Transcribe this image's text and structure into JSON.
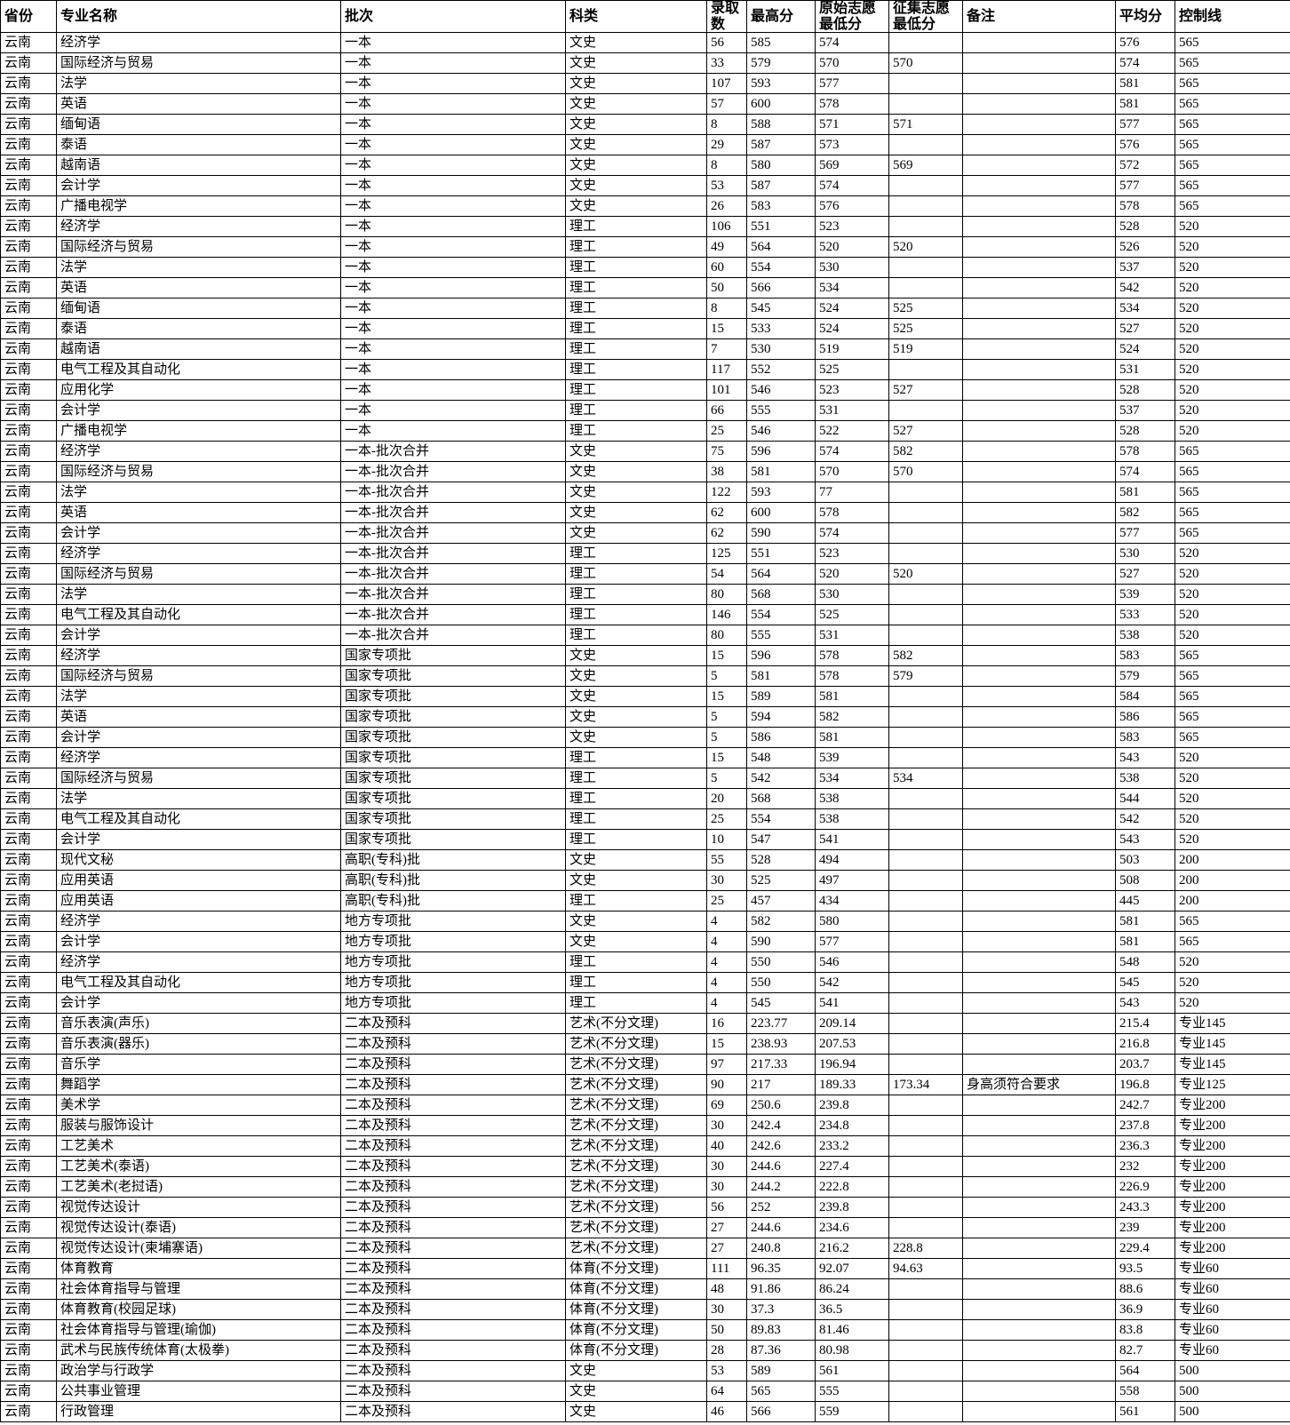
{
  "colors": {
    "border": "#000000",
    "background": "#ffffff",
    "text": "#000000"
  },
  "table": {
    "columns": [
      "省份",
      "专业名称",
      "批次",
      "科类",
      "录取数",
      "最高分",
      "原始志愿最低分",
      "征集志愿最低分",
      "备注",
      "平均分",
      "控制线"
    ],
    "rows": [
      [
        "云南",
        "经济学",
        "一本",
        "文史",
        "56",
        "585",
        "574",
        "",
        "",
        "576",
        "565"
      ],
      [
        "云南",
        "国际经济与贸易",
        "一本",
        "文史",
        "33",
        "579",
        "570",
        "570",
        "",
        "574",
        "565"
      ],
      [
        "云南",
        "法学",
        "一本",
        "文史",
        "107",
        "593",
        "577",
        "",
        "",
        "581",
        "565"
      ],
      [
        "云南",
        "英语",
        "一本",
        "文史",
        "57",
        "600",
        "578",
        "",
        "",
        "581",
        "565"
      ],
      [
        "云南",
        "缅甸语",
        "一本",
        "文史",
        "8",
        "588",
        "571",
        "571",
        "",
        "577",
        "565"
      ],
      [
        "云南",
        "泰语",
        "一本",
        "文史",
        "29",
        "587",
        "573",
        "",
        "",
        "576",
        "565"
      ],
      [
        "云南",
        "越南语",
        "一本",
        "文史",
        "8",
        "580",
        "569",
        "569",
        "",
        "572",
        "565"
      ],
      [
        "云南",
        "会计学",
        "一本",
        "文史",
        "53",
        "587",
        "574",
        "",
        "",
        "577",
        "565"
      ],
      [
        "云南",
        "广播电视学",
        "一本",
        "文史",
        "26",
        "583",
        "576",
        "",
        "",
        "578",
        "565"
      ],
      [
        "云南",
        "经济学",
        "一本",
        "理工",
        "106",
        "551",
        "523",
        "",
        "",
        "528",
        "520"
      ],
      [
        "云南",
        "国际经济与贸易",
        "一本",
        "理工",
        "49",
        "564",
        "520",
        "520",
        "",
        "526",
        "520"
      ],
      [
        "云南",
        "法学",
        "一本",
        "理工",
        "60",
        "554",
        "530",
        "",
        "",
        "537",
        "520"
      ],
      [
        "云南",
        "英语",
        "一本",
        "理工",
        "50",
        "566",
        "534",
        "",
        "",
        "542",
        "520"
      ],
      [
        "云南",
        "缅甸语",
        "一本",
        "理工",
        "8",
        "545",
        "524",
        "525",
        "",
        "534",
        "520"
      ],
      [
        "云南",
        "泰语",
        "一本",
        "理工",
        "15",
        "533",
        "524",
        "525",
        "",
        "527",
        "520"
      ],
      [
        "云南",
        "越南语",
        "一本",
        "理工",
        "7",
        "530",
        "519",
        "519",
        "",
        "524",
        "520"
      ],
      [
        "云南",
        "电气工程及其自动化",
        "一本",
        "理工",
        "117",
        "552",
        "525",
        "",
        "",
        "531",
        "520"
      ],
      [
        "云南",
        "应用化学",
        "一本",
        "理工",
        "101",
        "546",
        "523",
        "527",
        "",
        "528",
        "520"
      ],
      [
        "云南",
        "会计学",
        "一本",
        "理工",
        "66",
        "555",
        "531",
        "",
        "",
        "537",
        "520"
      ],
      [
        "云南",
        "广播电视学",
        "一本",
        "理工",
        "25",
        "546",
        "522",
        "527",
        "",
        "528",
        "520"
      ],
      [
        "云南",
        "经济学",
        "一本-批次合并",
        "文史",
        "75",
        "596",
        "574",
        "582",
        "",
        "578",
        "565"
      ],
      [
        "云南",
        "国际经济与贸易",
        "一本-批次合并",
        "文史",
        "38",
        "581",
        "570",
        "570",
        "",
        "574",
        "565"
      ],
      [
        "云南",
        "法学",
        "一本-批次合并",
        "文史",
        "122",
        "593",
        "77",
        "",
        "",
        "581",
        "565"
      ],
      [
        "云南",
        "英语",
        "一本-批次合并",
        "文史",
        "62",
        "600",
        "578",
        "",
        "",
        "582",
        "565"
      ],
      [
        "云南",
        "会计学",
        "一本-批次合并",
        "文史",
        "62",
        "590",
        "574",
        "",
        "",
        "577",
        "565"
      ],
      [
        "云南",
        "经济学",
        "一本-批次合并",
        "理工",
        "125",
        "551",
        "523",
        "",
        "",
        "530",
        "520"
      ],
      [
        "云南",
        "国际经济与贸易",
        "一本-批次合并",
        "理工",
        "54",
        "564",
        "520",
        "520",
        "",
        "527",
        "520"
      ],
      [
        "云南",
        "法学",
        "一本-批次合并",
        "理工",
        "80",
        "568",
        "530",
        "",
        "",
        "539",
        "520"
      ],
      [
        "云南",
        "电气工程及其自动化",
        "一本-批次合并",
        "理工",
        "146",
        "554",
        "525",
        "",
        "",
        "533",
        "520"
      ],
      [
        "云南",
        "会计学",
        "一本-批次合并",
        "理工",
        "80",
        "555",
        "531",
        "",
        "",
        "538",
        "520"
      ],
      [
        "云南",
        "经济学",
        "国家专项批",
        "文史",
        "15",
        "596",
        "578",
        "582",
        "",
        "583",
        "565"
      ],
      [
        "云南",
        "国际经济与贸易",
        "国家专项批",
        "文史",
        "5",
        "581",
        "578",
        "579",
        "",
        "579",
        "565"
      ],
      [
        "云南",
        "法学",
        "国家专项批",
        "文史",
        "15",
        "589",
        "581",
        "",
        "",
        "584",
        "565"
      ],
      [
        "云南",
        "英语",
        "国家专项批",
        "文史",
        "5",
        "594",
        "582",
        "",
        "",
        "586",
        "565"
      ],
      [
        "云南",
        "会计学",
        "国家专项批",
        "文史",
        "5",
        "586",
        "581",
        "",
        "",
        "583",
        "565"
      ],
      [
        "云南",
        "经济学",
        "国家专项批",
        "理工",
        "15",
        "548",
        "539",
        "",
        "",
        "543",
        "520"
      ],
      [
        "云南",
        "国际经济与贸易",
        "国家专项批",
        "理工",
        "5",
        "542",
        "534",
        "534",
        "",
        "538",
        "520"
      ],
      [
        "云南",
        "法学",
        "国家专项批",
        "理工",
        "20",
        "568",
        "538",
        "",
        "",
        "544",
        "520"
      ],
      [
        "云南",
        "电气工程及其自动化",
        "国家专项批",
        "理工",
        "25",
        "554",
        "538",
        "",
        "",
        "542",
        "520"
      ],
      [
        "云南",
        "会计学",
        "国家专项批",
        "理工",
        "10",
        "547",
        "541",
        "",
        "",
        "543",
        "520"
      ],
      [
        "云南",
        "现代文秘",
        "高职(专科)批",
        "文史",
        "55",
        "528",
        "494",
        "",
        "",
        "503",
        "200"
      ],
      [
        "云南",
        "应用英语",
        "高职(专科)批",
        "文史",
        "30",
        "525",
        "497",
        "",
        "",
        "508",
        "200"
      ],
      [
        "云南",
        "应用英语",
        "高职(专科)批",
        "理工",
        "25",
        "457",
        "434",
        "",
        "",
        "445",
        "200"
      ],
      [
        "云南",
        "经济学",
        "地方专项批",
        "文史",
        "4",
        "582",
        "580",
        "",
        "",
        "581",
        "565"
      ],
      [
        "云南",
        "会计学",
        "地方专项批",
        "文史",
        "4",
        "590",
        "577",
        "",
        "",
        "581",
        "565"
      ],
      [
        "云南",
        "经济学",
        "地方专项批",
        "理工",
        "4",
        "550",
        "546",
        "",
        "",
        "548",
        "520"
      ],
      [
        "云南",
        "电气工程及其自动化",
        "地方专项批",
        "理工",
        "4",
        "550",
        "542",
        "",
        "",
        "545",
        "520"
      ],
      [
        "云南",
        "会计学",
        "地方专项批",
        "理工",
        "4",
        "545",
        "541",
        "",
        "",
        "543",
        "520"
      ],
      [
        "云南",
        "音乐表演(声乐)",
        "二本及预科",
        "艺术(不分文理)",
        "16",
        "223.77",
        "209.14",
        "",
        "",
        "215.4",
        "专业145"
      ],
      [
        "云南",
        "音乐表演(器乐)",
        "二本及预科",
        "艺术(不分文理)",
        "15",
        "238.93",
        "207.53",
        "",
        "",
        "216.8",
        "专业145"
      ],
      [
        "云南",
        "音乐学",
        "二本及预科",
        "艺术(不分文理)",
        "97",
        "217.33",
        "196.94",
        "",
        "",
        "203.7",
        "专业145"
      ],
      [
        "云南",
        "舞蹈学",
        "二本及预科",
        "艺术(不分文理)",
        "90",
        "217",
        "189.33",
        "173.34",
        "身高须符合要求",
        "196.8",
        "专业125"
      ],
      [
        "云南",
        "美术学",
        "二本及预科",
        "艺术(不分文理)",
        "69",
        "250.6",
        "239.8",
        "",
        "",
        "242.7",
        "专业200"
      ],
      [
        "云南",
        "服装与服饰设计",
        "二本及预科",
        "艺术(不分文理)",
        "30",
        "242.4",
        "234.8",
        "",
        "",
        "237.8",
        "专业200"
      ],
      [
        "云南",
        "工艺美术",
        "二本及预科",
        "艺术(不分文理)",
        "40",
        "242.6",
        "233.2",
        "",
        "",
        "236.3",
        "专业200"
      ],
      [
        "云南",
        "工艺美术(泰语)",
        "二本及预科",
        "艺术(不分文理)",
        "30",
        "244.6",
        "227.4",
        "",
        "",
        "232",
        "专业200"
      ],
      [
        "云南",
        "工艺美术(老挝语)",
        "二本及预科",
        "艺术(不分文理)",
        "30",
        "244.2",
        "222.8",
        "",
        "",
        "226.9",
        "专业200"
      ],
      [
        "云南",
        "视觉传达设计",
        "二本及预科",
        "艺术(不分文理)",
        "56",
        "252",
        "239.8",
        "",
        "",
        "243.3",
        "专业200"
      ],
      [
        "云南",
        "视觉传达设计(泰语)",
        "二本及预科",
        "艺术(不分文理)",
        "27",
        "244.6",
        "234.6",
        "",
        "",
        "239",
        "专业200"
      ],
      [
        "云南",
        "视觉传达设计(柬埔寨语)",
        "二本及预科",
        "艺术(不分文理)",
        "27",
        "240.8",
        "216.2",
        "228.8",
        "",
        "229.4",
        "专业200"
      ],
      [
        "云南",
        "体育教育",
        "二本及预科",
        "体育(不分文理)",
        "111",
        "96.35",
        "92.07",
        "94.63",
        "",
        "93.5",
        "专业60"
      ],
      [
        "云南",
        "社会体育指导与管理",
        "二本及预科",
        "体育(不分文理)",
        "48",
        "91.86",
        "86.24",
        "",
        "",
        "88.6",
        "专业60"
      ],
      [
        "云南",
        "体育教育(校园足球)",
        "二本及预科",
        "体育(不分文理)",
        "30",
        "37.3",
        "36.5",
        "",
        "",
        "36.9",
        "专业60"
      ],
      [
        "云南",
        "社会体育指导与管理(瑜伽)",
        "二本及预科",
        "体育(不分文理)",
        "50",
        "89.83",
        "81.46",
        "",
        "",
        "83.8",
        "专业60"
      ],
      [
        "云南",
        "武术与民族传统体育(太极拳)",
        "二本及预科",
        "体育(不分文理)",
        "28",
        "87.36",
        "80.98",
        "",
        "",
        "82.7",
        "专业60"
      ],
      [
        "云南",
        "政治学与行政学",
        "二本及预科",
        "文史",
        "53",
        "589",
        "561",
        "",
        "",
        "564",
        "500"
      ],
      [
        "云南",
        "公共事业管理",
        "二本及预科",
        "文史",
        "64",
        "565",
        "555",
        "",
        "",
        "558",
        "500"
      ],
      [
        "云南",
        "行政管理",
        "二本及预科",
        "文史",
        "46",
        "566",
        "559",
        "",
        "",
        "561",
        "500"
      ]
    ]
  }
}
